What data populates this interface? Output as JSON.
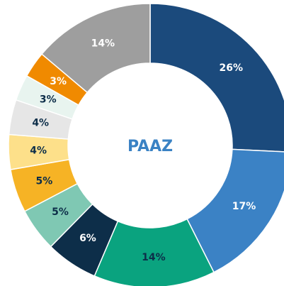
{
  "chart_data": {
    "type": "donut",
    "center_label": "PAAZ",
    "categories": [
      null,
      null,
      null,
      null,
      null,
      null,
      null,
      null,
      null,
      null,
      null
    ],
    "values": [
      26,
      17,
      14,
      6,
      5,
      5,
      4,
      4,
      3,
      3,
      14
    ],
    "value_labels": [
      "26%",
      "17%",
      "14%",
      "6%",
      "5%",
      "5%",
      "4%",
      "4%",
      "3%",
      "3%",
      "14%"
    ],
    "colors": [
      "#1b4a7c",
      "#3b82c5",
      "#0aa37f",
      "#0d2e49",
      "#7fc8b3",
      "#f6b325",
      "#fde08a",
      "#e6e6e6",
      "#e8f4ef",
      "#f08a00",
      "#9e9e9e"
    ]
  }
}
